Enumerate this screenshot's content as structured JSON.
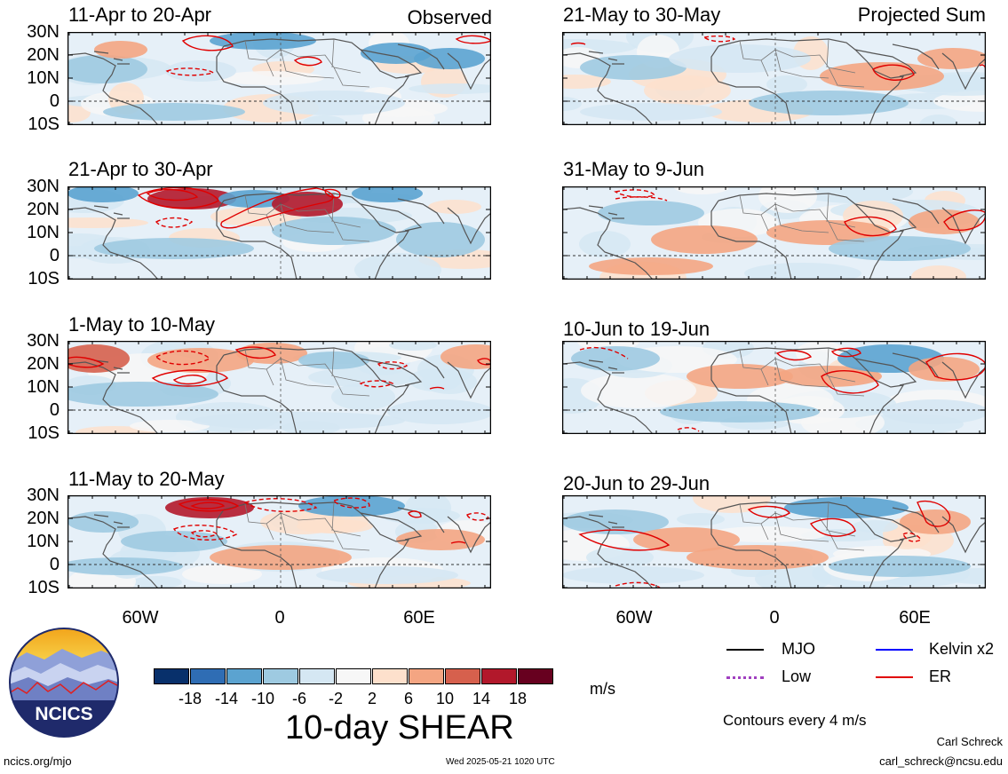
{
  "panels": [
    {
      "title": "11-Apr to 20-Apr",
      "tag": "Observed",
      "col": 0,
      "row": 0
    },
    {
      "title": "21-Apr to 30-Apr",
      "tag": "",
      "col": 0,
      "row": 1
    },
    {
      "title": "1-May to 10-May",
      "tag": "",
      "col": 0,
      "row": 2
    },
    {
      "title": "11-May to 20-May",
      "tag": "",
      "col": 0,
      "row": 3
    },
    {
      "title": "21-May to 30-May",
      "tag": "Projected Sum",
      "col": 1,
      "row": 0
    },
    {
      "title": "31-May to 9-Jun",
      "tag": "",
      "col": 1,
      "row": 1
    },
    {
      "title": "10-Jun to 19-Jun",
      "tag": "",
      "col": 1,
      "row": 2
    },
    {
      "title": "20-Jun to 29-Jun",
      "tag": "",
      "col": 1,
      "row": 3
    }
  ],
  "lat_labels": [
    "30N",
    "20N",
    "10N",
    "0",
    "10S"
  ],
  "lon_labels": [
    "60W",
    "0",
    "60E"
  ],
  "colorbar": {
    "colors": [
      "#08306b",
      "#2f6db4",
      "#5ba3d0",
      "#9ecae1",
      "#d5e7f3",
      "#f7f7f7",
      "#fde0cc",
      "#f4a582",
      "#d6604d",
      "#b2182b",
      "#67001f"
    ],
    "ticks": [
      "-18",
      "-14",
      "-10",
      "-6",
      "-2",
      "2",
      "6",
      "10",
      "14",
      "18"
    ],
    "units": "m/s"
  },
  "title": "10-day SHEAR",
  "legend": {
    "mjo": {
      "label": "MJO",
      "color": "#000000"
    },
    "kelvin": {
      "label": "Kelvin x2",
      "color": "#0000ff"
    },
    "low": {
      "label": "Low",
      "color": "#a040c0"
    },
    "er": {
      "label": "ER",
      "color": "#e00000"
    },
    "contour_note": "Contours every 4 m/s"
  },
  "logo_text": "NCICS",
  "footer": {
    "url": "ncics.org/mjo",
    "timestamp": "Wed 2025-05-21 1020 UTC",
    "author": "Carl Schreck",
    "email": "carl_schreck@ncsu.edu"
  }
}
